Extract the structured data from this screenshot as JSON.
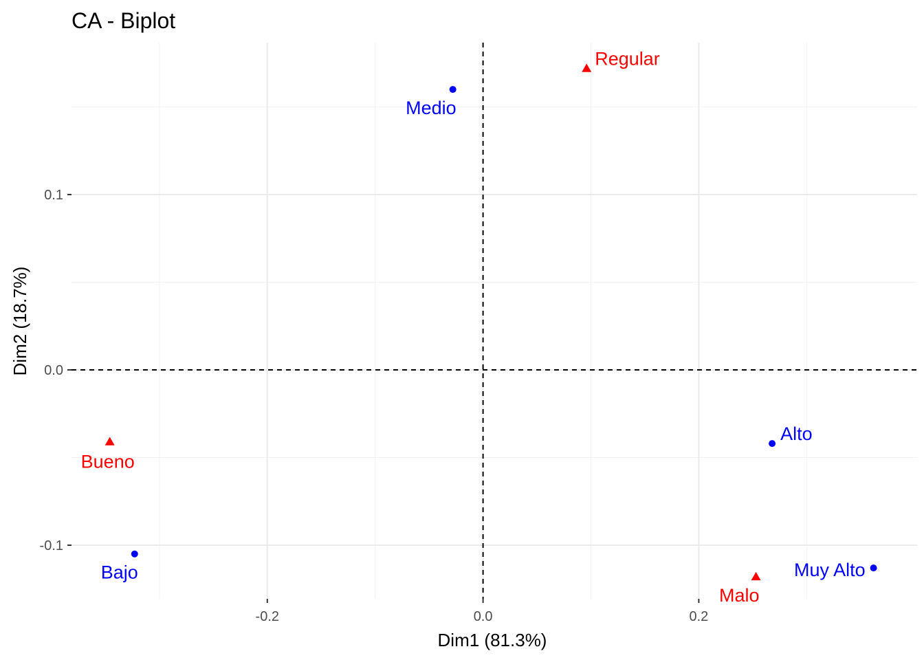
{
  "chart_data": {
    "type": "scatter",
    "title": "CA - Biplot",
    "xlabel": "Dim1 (81.3%)",
    "ylabel": "Dim2 (18.7%)",
    "xlim": [
      -0.3815,
      0.4024
    ],
    "ylim": [
      -0.1306,
      0.1867
    ],
    "x_ticks": [
      -0.2,
      0.0,
      0.2
    ],
    "x_tick_labels": [
      "-0.2",
      "0.0",
      "0.2"
    ],
    "y_ticks": [
      -0.1,
      0.0,
      0.1
    ],
    "y_tick_labels": [
      "-0.1",
      "0.0",
      "0.1"
    ],
    "grid": true,
    "zero_lines": "dashed",
    "series": [
      {
        "color": "#0000ff",
        "marker": "circle",
        "points": [
          {
            "label": "Medio",
            "x": -0.028,
            "y": 0.16,
            "label_pos": "below-left"
          },
          {
            "label": "Alto",
            "x": 0.268,
            "y": -0.042,
            "label_pos": "above-right"
          },
          {
            "label": "Bajo",
            "x": -0.323,
            "y": -0.105,
            "label_pos": "below-left"
          },
          {
            "label": "Muy Alto",
            "x": 0.362,
            "y": -0.113,
            "label_pos": "left"
          }
        ]
      },
      {
        "color": "#ff0000",
        "marker": "triangle",
        "points": [
          {
            "label": "Regular",
            "x": 0.096,
            "y": 0.172,
            "label_pos": "above-right"
          },
          {
            "label": "Bueno",
            "x": -0.346,
            "y": -0.041,
            "label_pos": "below"
          },
          {
            "label": "Malo",
            "x": 0.253,
            "y": -0.118,
            "label_pos": "below-left"
          }
        ]
      }
    ]
  }
}
